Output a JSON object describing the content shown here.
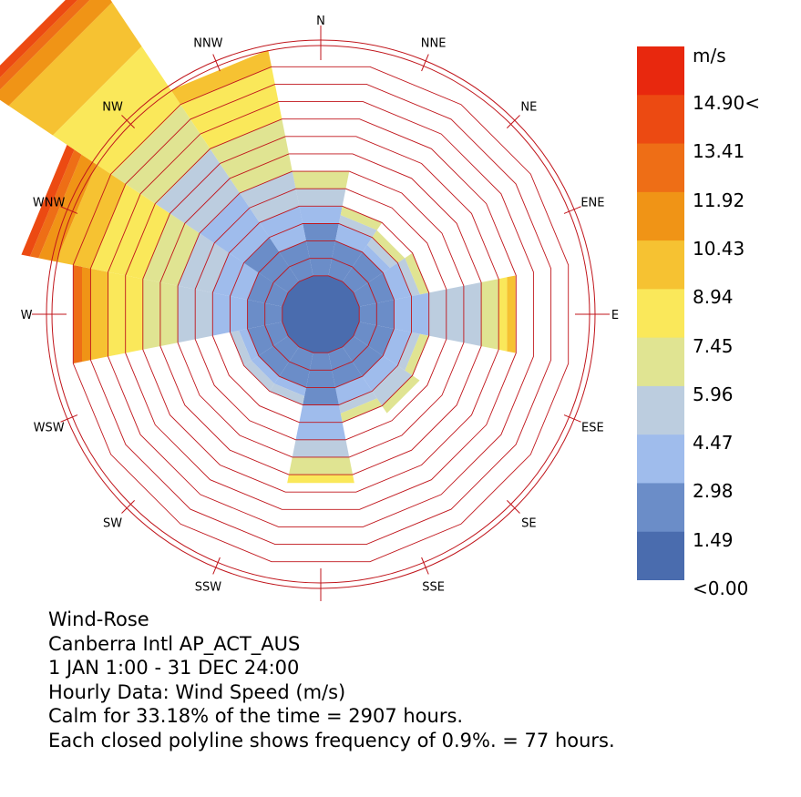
{
  "chart_data": {
    "type": "wind-rose",
    "directions": [
      "N",
      "NNE",
      "NE",
      "ENE",
      "E",
      "ESE",
      "SE",
      "SSE",
      "S",
      "SSW",
      "SW",
      "WSW",
      "W",
      "WNW",
      "NW",
      "NNW"
    ],
    "legend": {
      "unit": "m/s",
      "labels": [
        "14.90<",
        "13.41",
        "11.92",
        "10.43",
        "8.94",
        "7.45",
        "5.96",
        "4.47",
        "2.98",
        "1.49",
        "<0.00"
      ],
      "colors": [
        "#e8280e",
        "#ec4a12",
        "#ee6e16",
        "#f09416",
        "#f6c232",
        "#fae85a",
        "#e0e492",
        "#bccddf",
        "#9fbcec",
        "#6b8dc8",
        "#4a6cae"
      ]
    },
    "calm_percent": 33.18,
    "calm_hours": 2907,
    "ring_interval_percent": 0.9,
    "ring_interval_hours": 77,
    "bins_hours": {
      "N": [
        230,
        77,
        77,
        77,
        0,
        0,
        0,
        0,
        0,
        0
      ],
      "NNE": [
        154,
        77,
        38,
        38,
        0,
        0,
        0,
        0,
        0,
        0
      ],
      "NE": [
        154,
        38,
        38,
        38,
        0,
        0,
        0,
        0,
        0,
        0
      ],
      "ENE": [
        154,
        77,
        38,
        38,
        0,
        0,
        0,
        0,
        0,
        0
      ],
      "E": [
        154,
        154,
        230,
        77,
        38,
        38,
        0,
        0,
        0,
        0
      ],
      "ESE": [
        154,
        77,
        38,
        38,
        0,
        0,
        0,
        0,
        0,
        0
      ],
      "SE": [
        154,
        77,
        77,
        38,
        0,
        0,
        0,
        0,
        0,
        0
      ],
      "SSE": [
        154,
        77,
        38,
        38,
        0,
        0,
        0,
        0,
        0,
        0
      ],
      "S": [
        230,
        154,
        77,
        77,
        38,
        0,
        0,
        0,
        0,
        0
      ],
      "SSW": [
        154,
        38,
        38,
        0,
        0,
        0,
        0,
        0,
        0,
        0
      ],
      "SW": [
        154,
        38,
        38,
        0,
        0,
        0,
        0,
        0,
        0,
        0
      ],
      "WSW": [
        154,
        38,
        38,
        0,
        0,
        0,
        0,
        0,
        0,
        0
      ],
      "W": [
        154,
        154,
        154,
        154,
        154,
        77,
        38,
        38,
        0,
        0
      ],
      "WNW": [
        154,
        154,
        154,
        154,
        230,
        154,
        77,
        38,
        38,
        0
      ],
      "NW": [
        230,
        230,
        230,
        230,
        307,
        230,
        77,
        38,
        38,
        0
      ],
      "NNW": [
        154,
        154,
        154,
        230,
        230,
        77,
        0,
        0,
        0,
        0
      ]
    }
  },
  "info": {
    "title": "Wind-Rose",
    "location": "Canberra Intl AP_ACT_AUS",
    "period": "1 JAN 1:00 - 31 DEC 24:00",
    "data_type": "Hourly Data: Wind Speed (m/s)",
    "calm": "Calm for 33.18% of the time = 2907 hours.",
    "rings": "Each closed polyline shows frequency of 0.9%. = 77 hours."
  }
}
